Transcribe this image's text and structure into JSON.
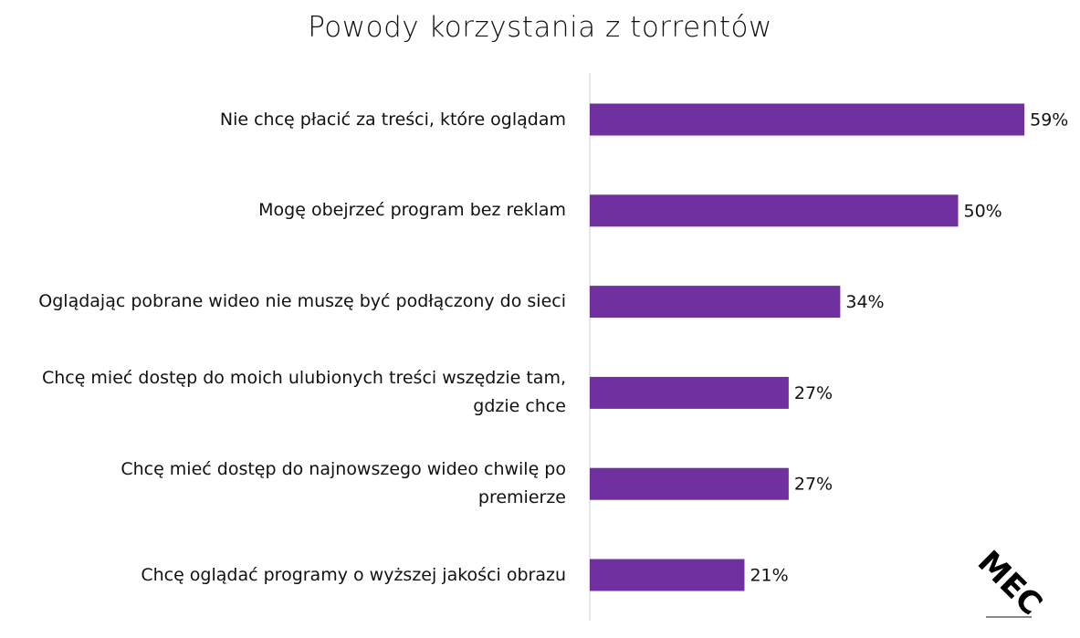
{
  "chart_data": {
    "type": "bar",
    "orientation": "horizontal",
    "title": "Powody korzystania z torrentów",
    "categories": [
      "Nie chcę płacić za treści, które oglądam",
      "Mogę obejrzeć program bez reklam",
      "Oglądając pobrane wideo nie muszę być podłączony do sieci",
      "Chcę mieć dostęp do moich ulubionych treści wszędzie tam,  gdzie chce",
      "Chcę mieć dostęp do najnowszego wideo chwilę po premierze",
      "Chcę oglądać programy o wyższej jakości obrazu"
    ],
    "values": [
      59,
      50,
      34,
      27,
      27,
      21
    ],
    "value_labels": [
      "59%",
      "50%",
      "34%",
      "27%",
      "27%",
      "21%"
    ],
    "color": "#7030a0",
    "logo": "MEC"
  }
}
